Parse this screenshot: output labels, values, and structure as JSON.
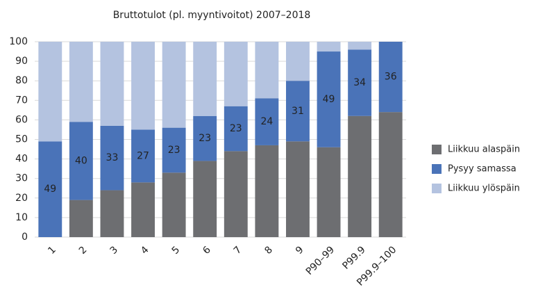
{
  "chart_data": {
    "type": "stacked_bar",
    "title": "Bruttotulot (pl. myyntivoitot) 2007–2018",
    "categories": [
      "1",
      "2",
      "3",
      "4",
      "5",
      "6",
      "7",
      "8",
      "9",
      "P90–99",
      "P99.9",
      "P99.9–100"
    ],
    "series": [
      {
        "name": "Liikkuu alaspäin",
        "color": "#6d6e71",
        "values": [
          0,
          19,
          24,
          28,
          33,
          39,
          44,
          47,
          49,
          46,
          62,
          64
        ]
      },
      {
        "name": "Pysyy samassa",
        "color": "#4a73b8",
        "values": [
          49,
          40,
          33,
          27,
          23,
          23,
          23,
          24,
          31,
          49,
          34,
          36
        ],
        "show_labels": true
      },
      {
        "name": "Liikkuu ylöspäin",
        "color": "#b4c3e0",
        "values": [
          51,
          41,
          43,
          45,
          44,
          38,
          33,
          29,
          20,
          5,
          4,
          0
        ]
      }
    ],
    "ylim": [
      0,
      100
    ],
    "yticks": [
      0,
      10,
      20,
      30,
      40,
      50,
      60,
      70,
      80,
      90,
      100
    ],
    "grid": true,
    "legend": "right"
  }
}
